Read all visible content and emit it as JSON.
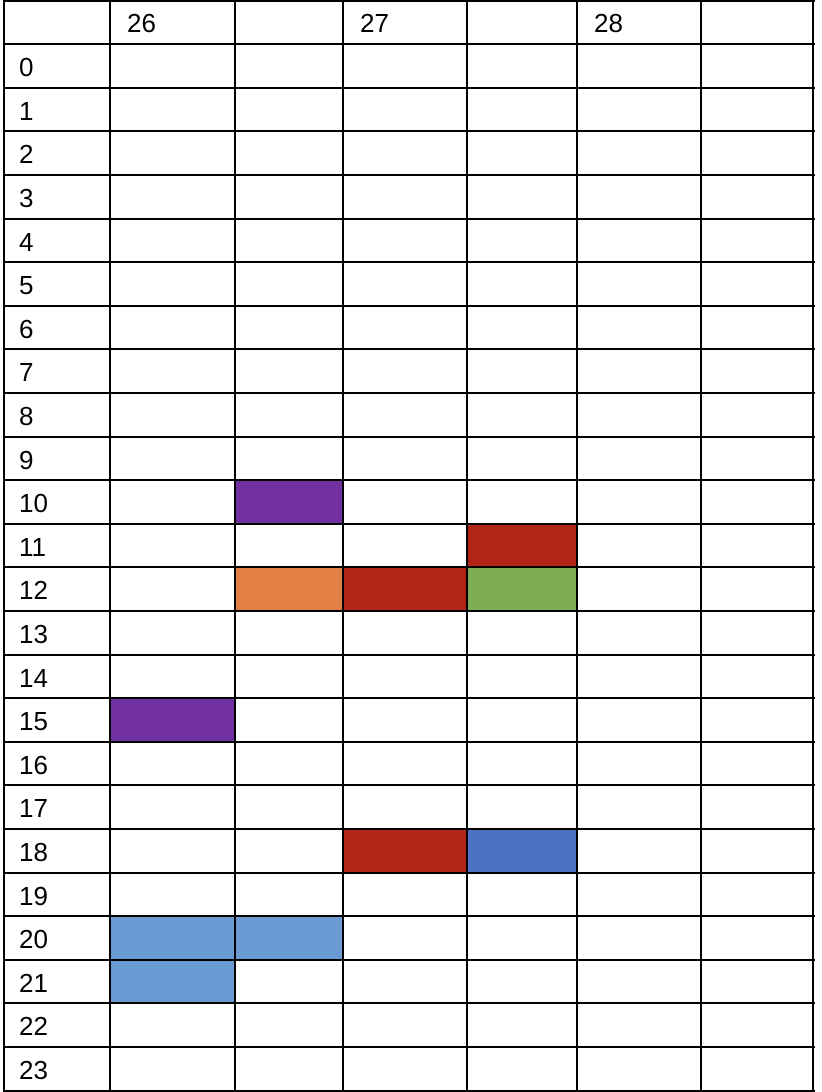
{
  "header": {
    "labels": [
      "",
      "26",
      "",
      "27",
      "",
      "28",
      ""
    ]
  },
  "rows": [
    "0",
    "1",
    "2",
    "3",
    "4",
    "5",
    "6",
    "7",
    "8",
    "9",
    "10",
    "11",
    "12",
    "13",
    "14",
    "15",
    "16",
    "17",
    "18",
    "19",
    "20",
    "21",
    "22",
    "23"
  ],
  "colors": {
    "purple": "#7030a0",
    "red": "#b22416",
    "orange": "#e27f45",
    "green": "#7fad55",
    "blue": "#4a71c2",
    "light_blue": "#6a9ad2",
    "grid": "#000000",
    "background": "#ffffff"
  },
  "filled_cells": [
    {
      "row": 10,
      "col": 2,
      "color": "purple"
    },
    {
      "row": 11,
      "col": 4,
      "color": "red"
    },
    {
      "row": 12,
      "col": 2,
      "color": "orange"
    },
    {
      "row": 12,
      "col": 3,
      "color": "red"
    },
    {
      "row": 12,
      "col": 4,
      "color": "green"
    },
    {
      "row": 15,
      "col": 1,
      "color": "purple"
    },
    {
      "row": 18,
      "col": 3,
      "color": "red"
    },
    {
      "row": 18,
      "col": 4,
      "color": "blue"
    },
    {
      "row": 20,
      "col": 1,
      "color": "light_blue"
    },
    {
      "row": 20,
      "col": 2,
      "color": "light_blue"
    },
    {
      "row": 21,
      "col": 1,
      "color": "light_blue"
    }
  ]
}
